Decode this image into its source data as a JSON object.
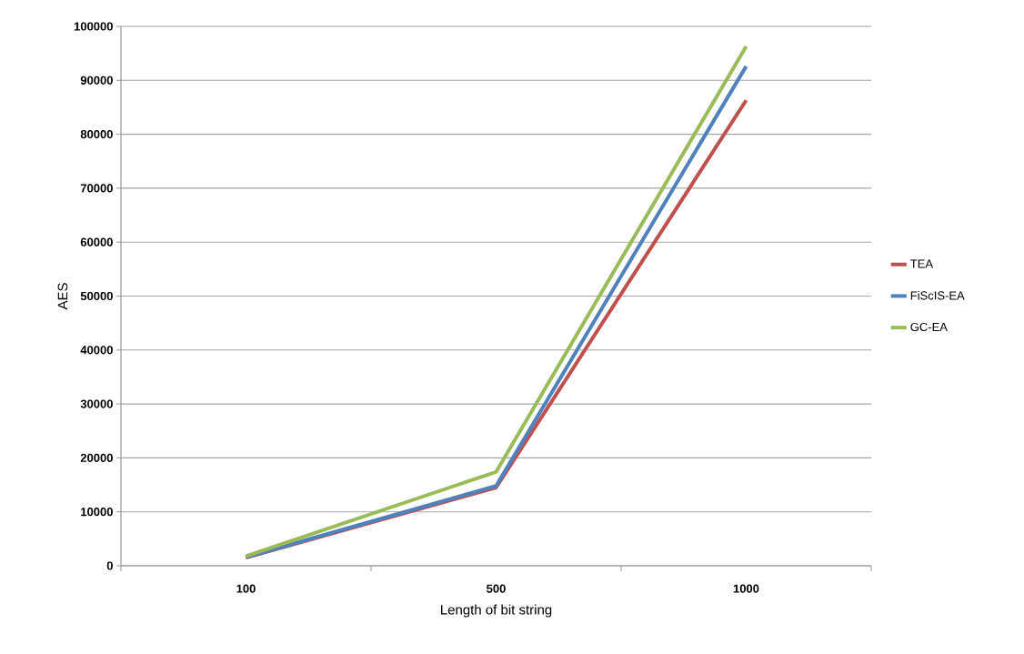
{
  "chart_data": {
    "type": "line",
    "xlabel": "Length of bit string",
    "ylabel": "AES",
    "categories": [
      "100",
      "500",
      "1000"
    ],
    "series": [
      {
        "name": "TEA",
        "color": "#c0504d",
        "values": [
          1500,
          14500,
          86300
        ]
      },
      {
        "name": "FiScIS-EA",
        "color": "#4f81bd",
        "values": [
          1600,
          14800,
          92600
        ]
      },
      {
        "name": "GC-EA",
        "color": "#9bbb59",
        "values": [
          1800,
          17400,
          96300
        ]
      }
    ],
    "ylim": [
      0,
      100000
    ],
    "yticks": [
      0,
      10000,
      20000,
      30000,
      40000,
      50000,
      60000,
      70000,
      80000,
      90000,
      100000
    ],
    "grid": "y",
    "legend": "right"
  }
}
